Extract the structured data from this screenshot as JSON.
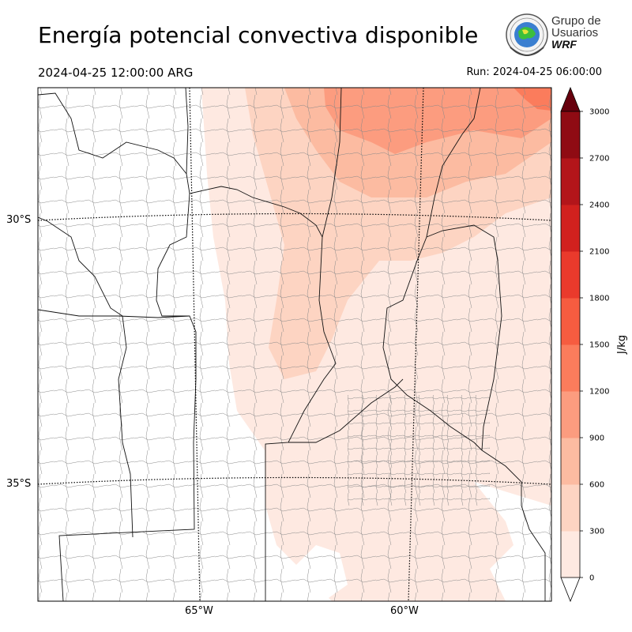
{
  "header": {
    "title": "Energía potencial convectiva disponible",
    "valid_time": "2024-04-25 12:00:00 ARG",
    "run_time": "Run: 2024-04-25 06:00:00"
  },
  "logo": {
    "line1": "Grupo de",
    "line2": "Usuarios",
    "line3": "WRF"
  },
  "map": {
    "latitude_labels": [
      "30°S",
      "35°S"
    ],
    "longitude_labels": [
      "65°W",
      "60°W"
    ],
    "field": "CAPE",
    "cape_max_region": "north-east"
  },
  "colorbar": {
    "unit_label": "J/kg",
    "ticks": [
      "0",
      "300",
      "600",
      "900",
      "1200",
      "1500",
      "1800",
      "2100",
      "2400",
      "2700",
      "3000"
    ],
    "colors": [
      "#fee9e1",
      "#fdd4c2",
      "#fcbba1",
      "#fc9c7f",
      "#fb7c5c",
      "#f65c40",
      "#ea3a2c",
      "#d1211e",
      "#b3151a",
      "#8f0b13"
    ],
    "over_color": "#67000d",
    "under_color": "#ffffff"
  }
}
